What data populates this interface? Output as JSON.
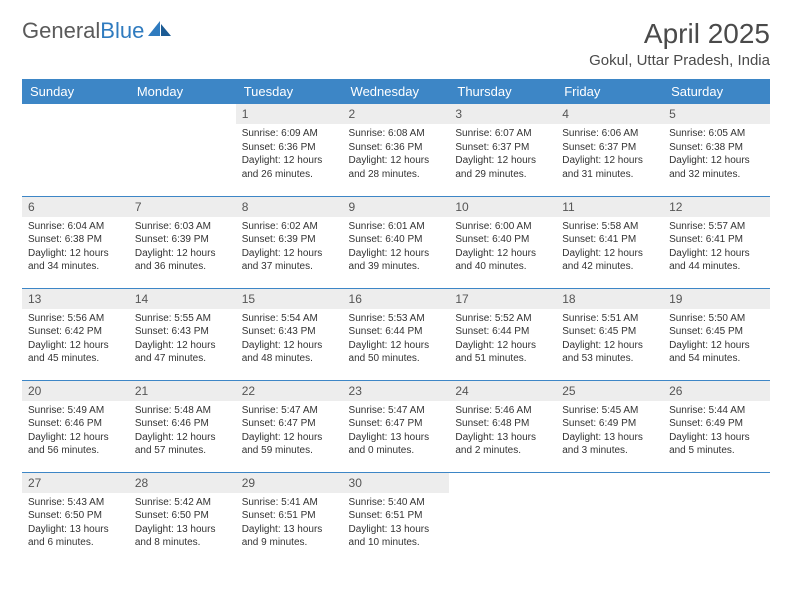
{
  "logo": {
    "word1": "General",
    "word2": "Blue"
  },
  "title": "April 2025",
  "location": "Gokul, Uttar Pradesh, India",
  "colors": {
    "header_bg": "#3d86c6",
    "header_text": "#ffffff",
    "daynum_bg": "#ededed",
    "border": "#3d86c6"
  },
  "weekdays": [
    "Sunday",
    "Monday",
    "Tuesday",
    "Wednesday",
    "Thursday",
    "Friday",
    "Saturday"
  ],
  "weeks": [
    [
      null,
      null,
      {
        "n": "1",
        "sr": "Sunrise: 6:09 AM",
        "ss": "Sunset: 6:36 PM",
        "dl": "Daylight: 12 hours and 26 minutes."
      },
      {
        "n": "2",
        "sr": "Sunrise: 6:08 AM",
        "ss": "Sunset: 6:36 PM",
        "dl": "Daylight: 12 hours and 28 minutes."
      },
      {
        "n": "3",
        "sr": "Sunrise: 6:07 AM",
        "ss": "Sunset: 6:37 PM",
        "dl": "Daylight: 12 hours and 29 minutes."
      },
      {
        "n": "4",
        "sr": "Sunrise: 6:06 AM",
        "ss": "Sunset: 6:37 PM",
        "dl": "Daylight: 12 hours and 31 minutes."
      },
      {
        "n": "5",
        "sr": "Sunrise: 6:05 AM",
        "ss": "Sunset: 6:38 PM",
        "dl": "Daylight: 12 hours and 32 minutes."
      }
    ],
    [
      {
        "n": "6",
        "sr": "Sunrise: 6:04 AM",
        "ss": "Sunset: 6:38 PM",
        "dl": "Daylight: 12 hours and 34 minutes."
      },
      {
        "n": "7",
        "sr": "Sunrise: 6:03 AM",
        "ss": "Sunset: 6:39 PM",
        "dl": "Daylight: 12 hours and 36 minutes."
      },
      {
        "n": "8",
        "sr": "Sunrise: 6:02 AM",
        "ss": "Sunset: 6:39 PM",
        "dl": "Daylight: 12 hours and 37 minutes."
      },
      {
        "n": "9",
        "sr": "Sunrise: 6:01 AM",
        "ss": "Sunset: 6:40 PM",
        "dl": "Daylight: 12 hours and 39 minutes."
      },
      {
        "n": "10",
        "sr": "Sunrise: 6:00 AM",
        "ss": "Sunset: 6:40 PM",
        "dl": "Daylight: 12 hours and 40 minutes."
      },
      {
        "n": "11",
        "sr": "Sunrise: 5:58 AM",
        "ss": "Sunset: 6:41 PM",
        "dl": "Daylight: 12 hours and 42 minutes."
      },
      {
        "n": "12",
        "sr": "Sunrise: 5:57 AM",
        "ss": "Sunset: 6:41 PM",
        "dl": "Daylight: 12 hours and 44 minutes."
      }
    ],
    [
      {
        "n": "13",
        "sr": "Sunrise: 5:56 AM",
        "ss": "Sunset: 6:42 PM",
        "dl": "Daylight: 12 hours and 45 minutes."
      },
      {
        "n": "14",
        "sr": "Sunrise: 5:55 AM",
        "ss": "Sunset: 6:43 PM",
        "dl": "Daylight: 12 hours and 47 minutes."
      },
      {
        "n": "15",
        "sr": "Sunrise: 5:54 AM",
        "ss": "Sunset: 6:43 PM",
        "dl": "Daylight: 12 hours and 48 minutes."
      },
      {
        "n": "16",
        "sr": "Sunrise: 5:53 AM",
        "ss": "Sunset: 6:44 PM",
        "dl": "Daylight: 12 hours and 50 minutes."
      },
      {
        "n": "17",
        "sr": "Sunrise: 5:52 AM",
        "ss": "Sunset: 6:44 PM",
        "dl": "Daylight: 12 hours and 51 minutes."
      },
      {
        "n": "18",
        "sr": "Sunrise: 5:51 AM",
        "ss": "Sunset: 6:45 PM",
        "dl": "Daylight: 12 hours and 53 minutes."
      },
      {
        "n": "19",
        "sr": "Sunrise: 5:50 AM",
        "ss": "Sunset: 6:45 PM",
        "dl": "Daylight: 12 hours and 54 minutes."
      }
    ],
    [
      {
        "n": "20",
        "sr": "Sunrise: 5:49 AM",
        "ss": "Sunset: 6:46 PM",
        "dl": "Daylight: 12 hours and 56 minutes."
      },
      {
        "n": "21",
        "sr": "Sunrise: 5:48 AM",
        "ss": "Sunset: 6:46 PM",
        "dl": "Daylight: 12 hours and 57 minutes."
      },
      {
        "n": "22",
        "sr": "Sunrise: 5:47 AM",
        "ss": "Sunset: 6:47 PM",
        "dl": "Daylight: 12 hours and 59 minutes."
      },
      {
        "n": "23",
        "sr": "Sunrise: 5:47 AM",
        "ss": "Sunset: 6:47 PM",
        "dl": "Daylight: 13 hours and 0 minutes."
      },
      {
        "n": "24",
        "sr": "Sunrise: 5:46 AM",
        "ss": "Sunset: 6:48 PM",
        "dl": "Daylight: 13 hours and 2 minutes."
      },
      {
        "n": "25",
        "sr": "Sunrise: 5:45 AM",
        "ss": "Sunset: 6:49 PM",
        "dl": "Daylight: 13 hours and 3 minutes."
      },
      {
        "n": "26",
        "sr": "Sunrise: 5:44 AM",
        "ss": "Sunset: 6:49 PM",
        "dl": "Daylight: 13 hours and 5 minutes."
      }
    ],
    [
      {
        "n": "27",
        "sr": "Sunrise: 5:43 AM",
        "ss": "Sunset: 6:50 PM",
        "dl": "Daylight: 13 hours and 6 minutes."
      },
      {
        "n": "28",
        "sr": "Sunrise: 5:42 AM",
        "ss": "Sunset: 6:50 PM",
        "dl": "Daylight: 13 hours and 8 minutes."
      },
      {
        "n": "29",
        "sr": "Sunrise: 5:41 AM",
        "ss": "Sunset: 6:51 PM",
        "dl": "Daylight: 13 hours and 9 minutes."
      },
      {
        "n": "30",
        "sr": "Sunrise: 5:40 AM",
        "ss": "Sunset: 6:51 PM",
        "dl": "Daylight: 13 hours and 10 minutes."
      },
      null,
      null,
      null
    ]
  ]
}
